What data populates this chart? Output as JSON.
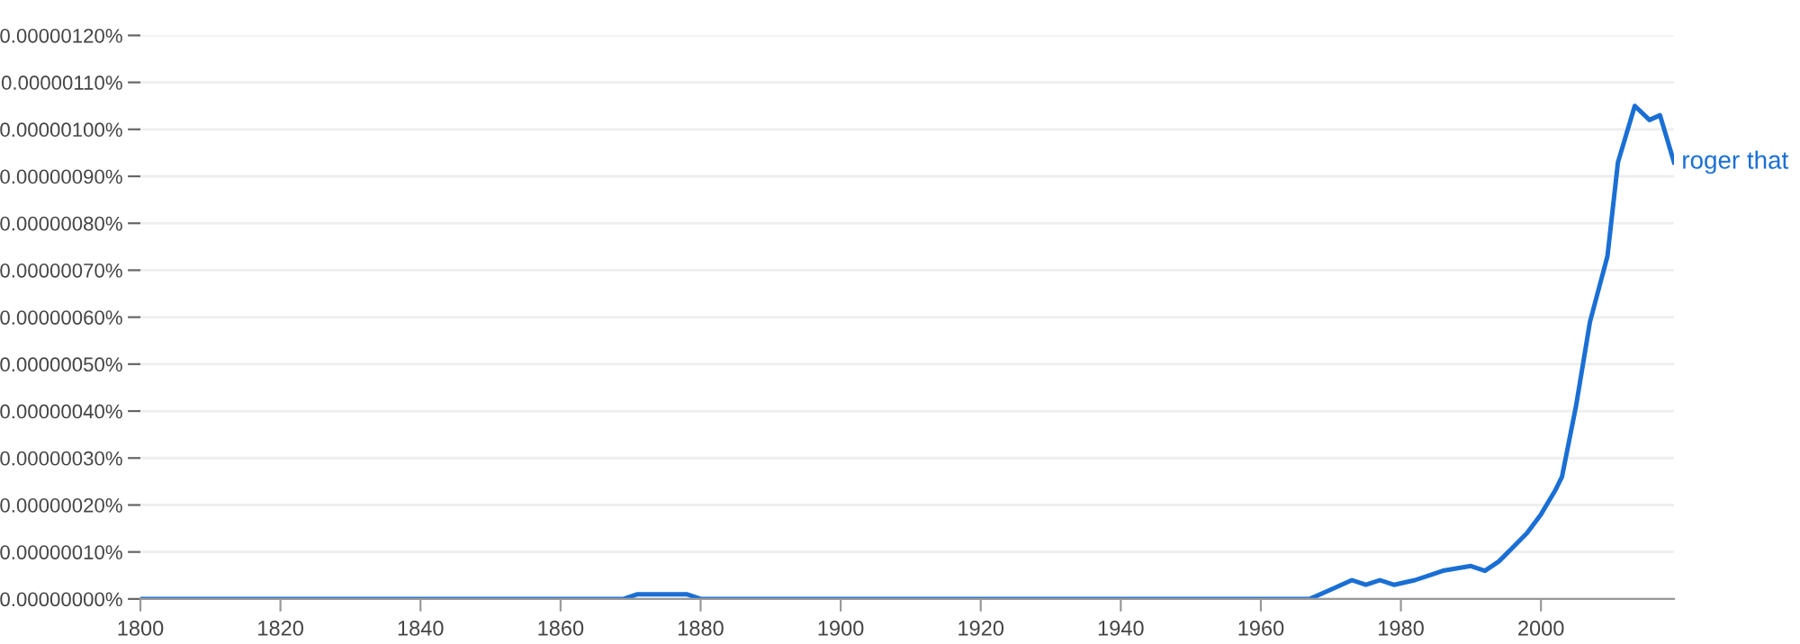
{
  "chart_data": {
    "type": "line",
    "x": [
      1800,
      1820,
      1840,
      1860,
      1869,
      1871,
      1875,
      1878,
      1880,
      1885,
      1890,
      1900,
      1920,
      1940,
      1960,
      1965,
      1967,
      1970,
      1973,
      1975,
      1977,
      1979,
      1982,
      1984,
      1986,
      1990,
      1992,
      1994,
      1996,
      1998,
      2000,
      2002,
      2003,
      2005,
      2007,
      2009.5,
      2011,
      2013.4,
      2015.5,
      2017,
      2019
    ],
    "series": [
      {
        "name": "roger that",
        "color": "#1a6fd4",
        "values": [
          0,
          0,
          0,
          0,
          0,
          1e-08,
          1e-08,
          1e-08,
          0,
          0,
          0,
          0,
          0,
          0,
          0,
          0,
          0,
          2e-08,
          4e-08,
          3e-08,
          4e-08,
          3e-08,
          4e-08,
          5e-08,
          6e-08,
          7e-08,
          6e-08,
          8e-08,
          1.1e-07,
          1.4e-07,
          1.8e-07,
          2.3e-07,
          2.6e-07,
          4.1e-07,
          5.9e-07,
          7.3e-07,
          9.3e-07,
          1.05e-06,
          1.02e-06,
          1.03e-06,
          9.3e-07
        ]
      }
    ],
    "xlim": [
      1800,
      2019
    ],
    "xticks": [
      1800,
      1820,
      1840,
      1860,
      1880,
      1900,
      1920,
      1940,
      1960,
      1980,
      2000
    ],
    "ylim": [
      0,
      1.2e-06
    ],
    "yticks": [
      {
        "value": 0,
        "label": "0.00000000%"
      },
      {
        "value": 1e-07,
        "label": "0.00000010%"
      },
      {
        "value": 2e-07,
        "label": "0.00000020%"
      },
      {
        "value": 3e-07,
        "label": "0.00000030%"
      },
      {
        "value": 4e-07,
        "label": "0.00000040%"
      },
      {
        "value": 5e-07,
        "label": "0.00000050%"
      },
      {
        "value": 6e-07,
        "label": "0.00000060%"
      },
      {
        "value": 7e-07,
        "label": "0.00000070%"
      },
      {
        "value": 8e-07,
        "label": "0.00000080%"
      },
      {
        "value": 9e-07,
        "label": "0.00000090%"
      },
      {
        "value": 1e-06,
        "label": "0.00000100%"
      },
      {
        "value": 1.1e-06,
        "label": "0.00000110%"
      },
      {
        "value": 1.2e-06,
        "label": "0.00000120%"
      }
    ],
    "grid": "y",
    "legend": false,
    "marker": "none",
    "line_style": "solid"
  }
}
